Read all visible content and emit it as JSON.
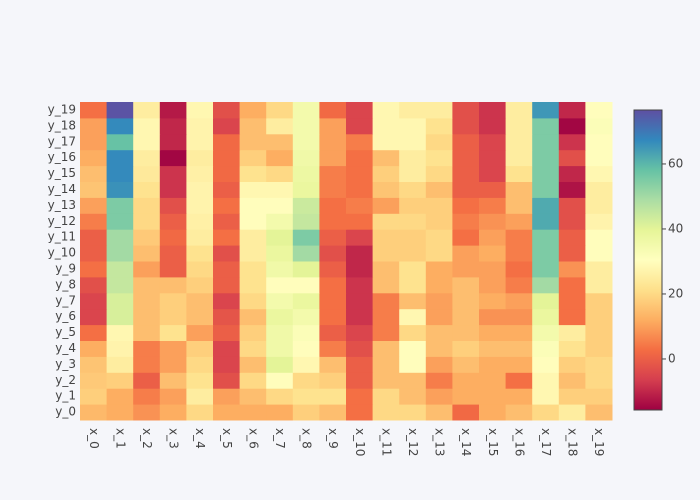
{
  "chart_data": {
    "type": "heatmap",
    "x": [
      "x_0",
      "x_1",
      "x_2",
      "x_3",
      "x_4",
      "x_5",
      "x_6",
      "x_7",
      "x_8",
      "x_9",
      "x_10",
      "x_11",
      "x_12",
      "x_13",
      "x_14",
      "x_15",
      "x_16",
      "x_17",
      "x_18",
      "x_19"
    ],
    "y": [
      "y_0",
      "y_1",
      "y_2",
      "y_3",
      "y_4",
      "y_5",
      "y_6",
      "y_7",
      "y_8",
      "y_9",
      "y_10",
      "y_11",
      "y_12",
      "y_13",
      "y_14",
      "y_15",
      "y_16",
      "y_17",
      "y_18",
      "y_19"
    ],
    "z": [
      [
        14,
        12,
        8,
        12,
        20,
        12,
        12,
        12,
        18,
        15,
        3,
        20,
        20,
        15,
        2,
        12,
        15,
        20,
        25,
        15
      ],
      [
        18,
        12,
        5,
        10,
        25,
        10,
        15,
        20,
        22,
        22,
        3,
        20,
        15,
        10,
        12,
        12,
        12,
        28,
        18,
        18
      ],
      [
        17,
        18,
        0,
        15,
        22,
        -3,
        20,
        30,
        20,
        18,
        0,
        15,
        15,
        5,
        12,
        12,
        3,
        28,
        15,
        20
      ],
      [
        16,
        25,
        5,
        10,
        20,
        -5,
        15,
        40,
        28,
        15,
        0,
        15,
        30,
        10,
        15,
        12,
        12,
        30,
        18,
        20
      ],
      [
        12,
        27,
        5,
        10,
        18,
        -5,
        20,
        36,
        30,
        5,
        -3,
        15,
        30,
        15,
        18,
        15,
        15,
        32,
        22,
        18
      ],
      [
        3,
        28,
        15,
        22,
        10,
        0,
        18,
        36,
        32,
        0,
        -5,
        5,
        20,
        15,
        15,
        12,
        12,
        35,
        25,
        18
      ],
      [
        -5,
        42,
        15,
        18,
        15,
        -2,
        15,
        38,
        35,
        3,
        -8,
        5,
        28,
        10,
        15,
        8,
        8,
        38,
        3,
        18
      ],
      [
        -5,
        42,
        15,
        18,
        15,
        -5,
        20,
        35,
        38,
        3,
        -8,
        5,
        15,
        10,
        15,
        12,
        10,
        40,
        3,
        18
      ],
      [
        -3,
        45,
        15,
        15,
        18,
        0,
        22,
        30,
        30,
        3,
        -8,
        15,
        22,
        12,
        15,
        10,
        5,
        50,
        3,
        25
      ],
      [
        3,
        45,
        10,
        0,
        20,
        0,
        22,
        36,
        40,
        0,
        -10,
        15,
        22,
        12,
        10,
        10,
        3,
        55,
        8,
        25
      ],
      [
        0,
        50,
        15,
        0,
        22,
        -3,
        25,
        38,
        50,
        -3,
        -10,
        18,
        18,
        20,
        10,
        12,
        5,
        55,
        0,
        30
      ],
      [
        0,
        50,
        17,
        2,
        25,
        3,
        25,
        40,
        55,
        0,
        -5,
        18,
        18,
        20,
        3,
        10,
        5,
        55,
        0,
        30
      ],
      [
        5,
        55,
        20,
        0,
        26,
        0,
        30,
        35,
        45,
        3,
        3,
        20,
        20,
        18,
        5,
        8,
        10,
        62,
        -3,
        27
      ],
      [
        10,
        55,
        20,
        -3,
        27,
        3,
        30,
        30,
        44,
        3,
        5,
        10,
        18,
        18,
        3,
        5,
        15,
        62,
        -3,
        25
      ],
      [
        16,
        66,
        22,
        -8,
        27,
        0,
        28,
        28,
        38,
        5,
        3,
        16,
        20,
        15,
        0,
        0,
        15,
        55,
        -13,
        25
      ],
      [
        15,
        67,
        24,
        -8,
        26,
        2,
        22,
        20,
        37,
        5,
        3,
        18,
        25,
        20,
        0,
        -5,
        22,
        55,
        -10,
        28
      ],
      [
        12,
        67,
        25,
        -15,
        25,
        2,
        18,
        12,
        36,
        10,
        3,
        15,
        25,
        22,
        0,
        -5,
        25,
        55,
        -3,
        30
      ],
      [
        10,
        58,
        28,
        -10,
        27,
        2,
        15,
        15,
        35,
        10,
        5,
        28,
        28,
        20,
        0,
        -5,
        25,
        55,
        -8,
        30
      ],
      [
        10,
        67,
        28,
        -10,
        27,
        -5,
        15,
        25,
        35,
        10,
        -5,
        28,
        28,
        22,
        -3,
        -8,
        25,
        55,
        -15,
        32
      ],
      [
        3,
        76,
        25,
        -12,
        28,
        -3,
        12,
        20,
        35,
        2,
        -5,
        28,
        25,
        25,
        -3,
        -8,
        25,
        65,
        -10,
        30
      ]
    ],
    "zlim": [
      -15.7,
      76.6
    ],
    "zticks": [
      0,
      20,
      40,
      60
    ],
    "colorscale": [
      [
        0,
        "#9e0142"
      ],
      [
        0.1,
        "#d53e4f"
      ],
      [
        0.2,
        "#f46d43"
      ],
      [
        0.3,
        "#fdae61"
      ],
      [
        0.4,
        "#fee08b"
      ],
      [
        0.5,
        "#ffffbf"
      ],
      [
        0.6,
        "#e6f598"
      ],
      [
        0.7,
        "#abdda4"
      ],
      [
        0.8,
        "#66c2a5"
      ],
      [
        0.9,
        "#3288bd"
      ],
      [
        1,
        "#5e4fa2"
      ]
    ]
  }
}
